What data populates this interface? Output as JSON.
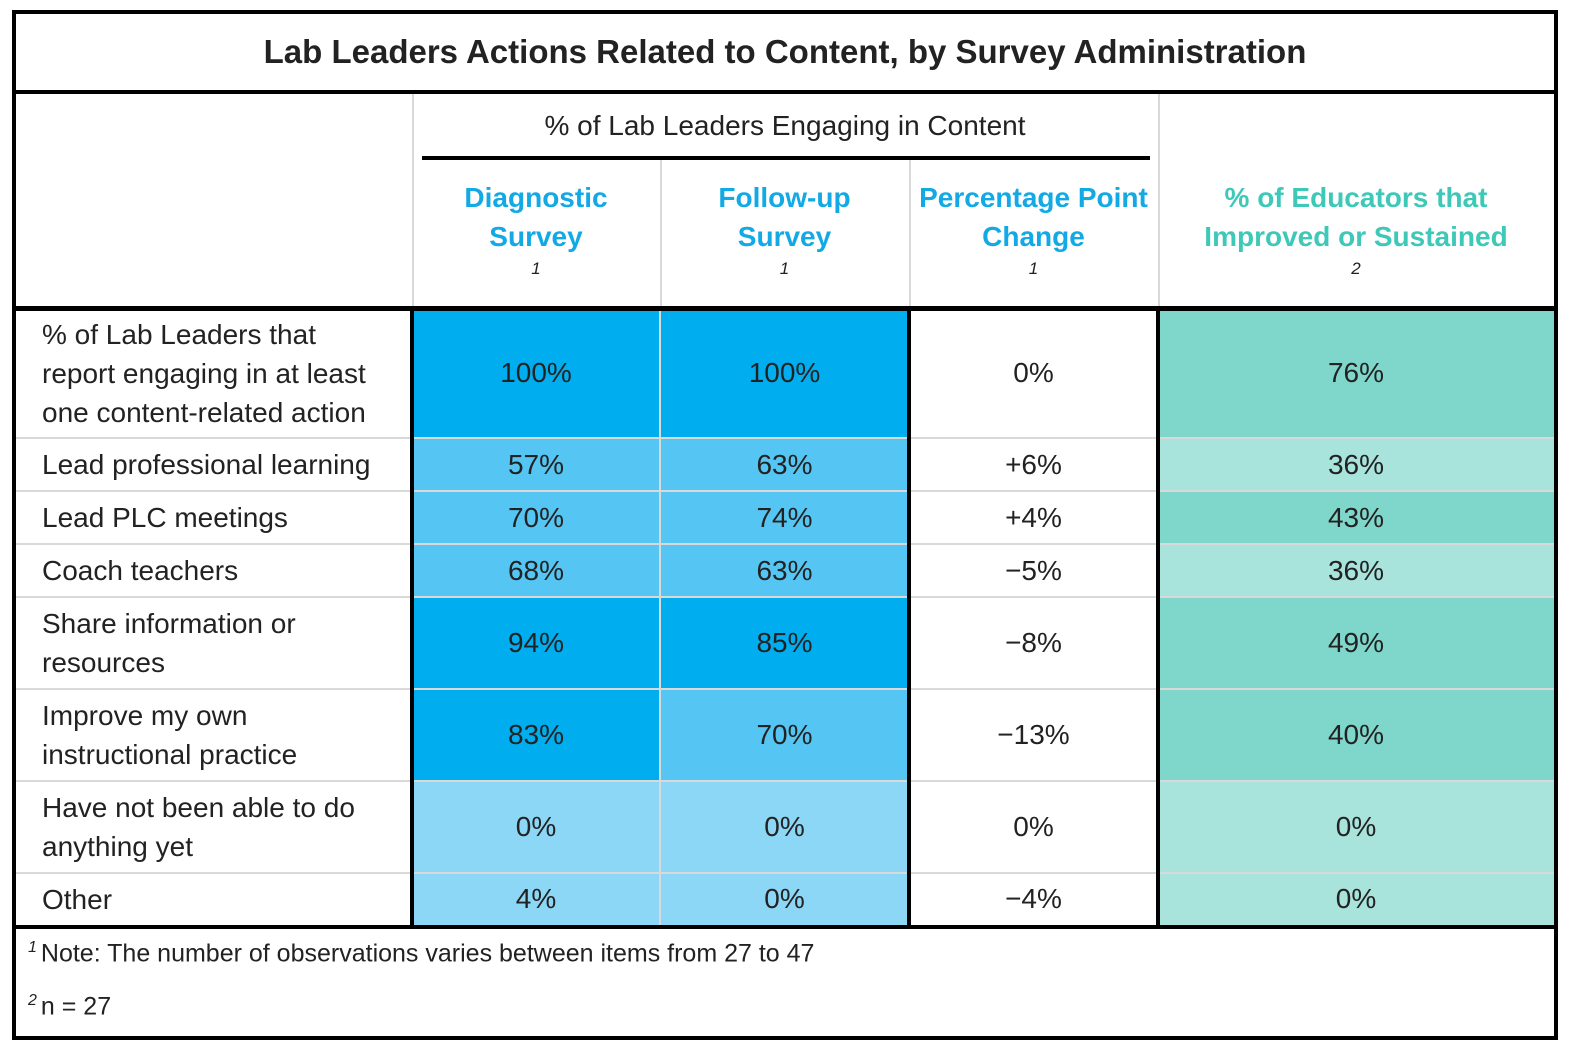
{
  "chart_data": {
    "type": "table",
    "title": "Lab Leaders Actions Related to Content, by Survey Administration",
    "group_header": "% of Lab Leaders Engaging in Content",
    "columns": [
      {
        "name": "Diagnostic Survey",
        "lines": [
          "Diagnostic",
          "Survey"
        ],
        "footnote": "1"
      },
      {
        "name": "Follow-up Survey",
        "lines": [
          "Follow-up",
          "Survey"
        ],
        "footnote": "1"
      },
      {
        "name": "Percentage Point Change",
        "lines": [
          "Percentage Point",
          "Change"
        ],
        "footnote": "1"
      },
      {
        "name": "% of Educators that Improved or Sustained",
        "lines": [
          "% of Educators that",
          "Improved or Sustained"
        ],
        "footnote": "2"
      }
    ],
    "rows": [
      {
        "label": "% of Lab Leaders that report engaging in at least one content-related action",
        "label_lines": [
          "% of Lab Leaders that",
          "report engaging in at least",
          "one content-related action"
        ],
        "values": [
          "100%",
          "100%",
          "0%",
          "76%"
        ]
      },
      {
        "label": "Lead professional learning",
        "label_lines": [
          "Lead professional learning"
        ],
        "values": [
          "57%",
          "63%",
          "+6%",
          "36%"
        ]
      },
      {
        "label": "Lead PLC meetings",
        "label_lines": [
          "Lead PLC meetings"
        ],
        "values": [
          "70%",
          "74%",
          "+4%",
          "43%"
        ]
      },
      {
        "label": "Coach teachers",
        "label_lines": [
          "Coach teachers"
        ],
        "values": [
          "68%",
          "63%",
          "−5%",
          "36%"
        ]
      },
      {
        "label": "Share information or resources",
        "label_lines": [
          "Share information or",
          "resources"
        ],
        "values": [
          "94%",
          "85%",
          "−8%",
          "49%"
        ]
      },
      {
        "label": "Improve my own instructional practice",
        "label_lines": [
          "Improve my own",
          "instructional practice"
        ],
        "values": [
          "83%",
          "70%",
          "−13%",
          "40%"
        ]
      },
      {
        "label": "Have not been able to do anything yet",
        "label_lines": [
          "Have not been able to do",
          "anything yet"
        ],
        "values": [
          "0%",
          "0%",
          "0%",
          "0%"
        ]
      },
      {
        "label": "Other",
        "label_lines": [
          "Other"
        ],
        "values": [
          "4%",
          "0%",
          "−4%",
          "0%"
        ]
      }
    ],
    "cell_colors": [
      [
        "#00adef",
        "#00adef",
        "#ffffff",
        "#7fd6cb"
      ],
      [
        "#55c6f3",
        "#55c6f3",
        "#ffffff",
        "#a8e3dc"
      ],
      [
        "#55c6f3",
        "#55c6f3",
        "#ffffff",
        "#7fd6cb"
      ],
      [
        "#55c6f3",
        "#55c6f3",
        "#ffffff",
        "#a8e3dc"
      ],
      [
        "#00adef",
        "#00adef",
        "#ffffff",
        "#7fd6cb"
      ],
      [
        "#00adef",
        "#55c6f3",
        "#ffffff",
        "#7fd6cb"
      ],
      [
        "#8dd7f6",
        "#8dd7f6",
        "#ffffff",
        "#a8e3dc"
      ],
      [
        "#8dd7f6",
        "#8dd7f6",
        "#ffffff",
        "#a8e3dc"
      ]
    ],
    "colors": {
      "header_blue": "#12a9e4",
      "header_teal": "#3ec8b8"
    },
    "footnotes": [
      {
        "mark": "1",
        "text": "Note: The number of observations varies between items from 27 to 47"
      },
      {
        "mark": "2",
        "text": "n = 27"
      }
    ]
  }
}
